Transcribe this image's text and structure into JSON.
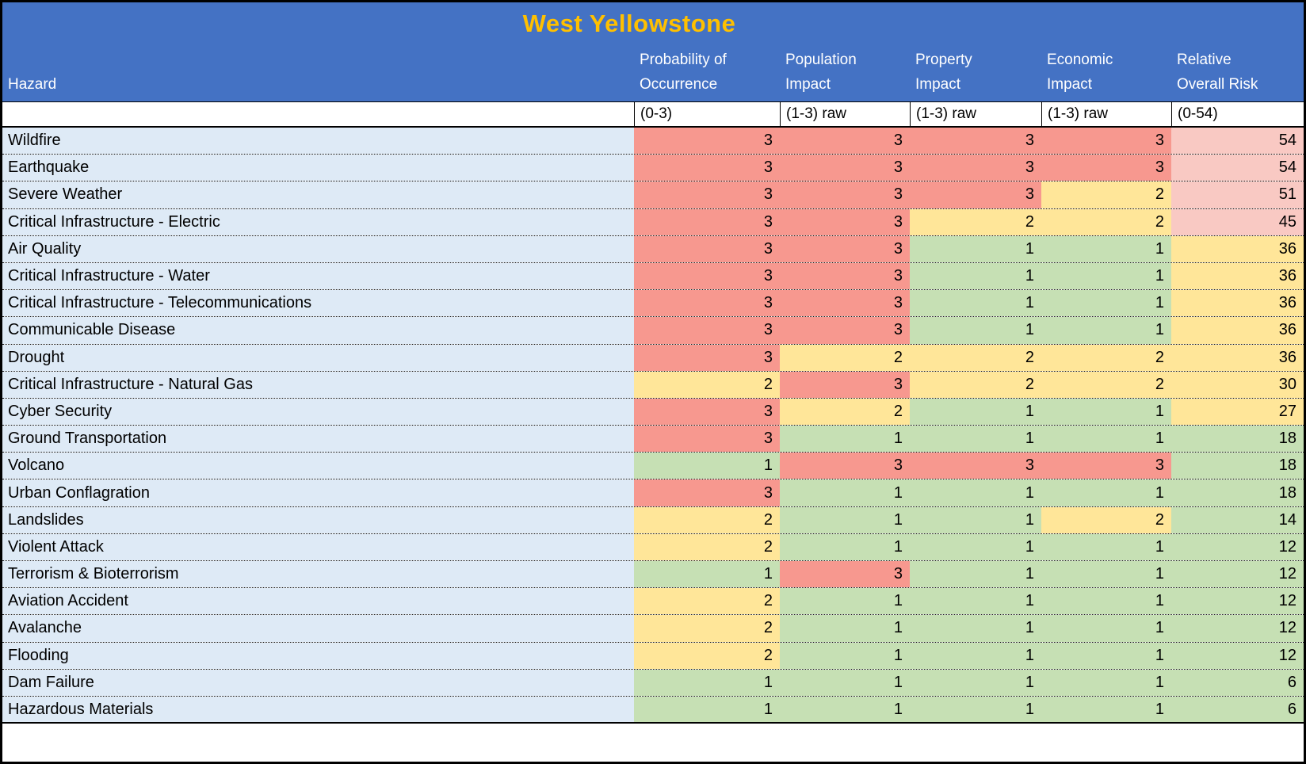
{
  "title": "West Yellowstone",
  "table": {
    "hazard_header": "Hazard",
    "columns": [
      {
        "line1": "Probability of",
        "line2": "Occurrence",
        "range": "(0-3)"
      },
      {
        "line1": "Population",
        "line2": "Impact",
        "range": "(1-3) raw"
      },
      {
        "line1": "Property",
        "line2": "Impact",
        "range": "(1-3) raw"
      },
      {
        "line1": "Economic",
        "line2": "Impact",
        "range": "(1-3) raw"
      },
      {
        "line1": "Relative",
        "line2": "Overall Risk",
        "range": "(0-54)"
      }
    ],
    "value_cell_names": [
      "probability-cell",
      "population-impact-cell",
      "property-impact-cell",
      "economic-impact-cell"
    ],
    "rows": [
      {
        "hazard": "Wildfire",
        "values": [
          3,
          3,
          3,
          3
        ],
        "risk": 54,
        "risk_color": "high"
      },
      {
        "hazard": "Earthquake",
        "values": [
          3,
          3,
          3,
          3
        ],
        "risk": 54,
        "risk_color": "high"
      },
      {
        "hazard": "Severe Weather",
        "values": [
          3,
          3,
          3,
          2
        ],
        "risk": 51,
        "risk_color": "high"
      },
      {
        "hazard": "Critical Infrastructure - Electric",
        "values": [
          3,
          3,
          2,
          2
        ],
        "risk": 45,
        "risk_color": "high"
      },
      {
        "hazard": "Air Quality",
        "values": [
          3,
          3,
          1,
          1
        ],
        "risk": 36,
        "risk_color": "medium"
      },
      {
        "hazard": "Critical Infrastructure - Water",
        "values": [
          3,
          3,
          1,
          1
        ],
        "risk": 36,
        "risk_color": "medium"
      },
      {
        "hazard": "Critical Infrastructure - Telecommunications",
        "values": [
          3,
          3,
          1,
          1
        ],
        "risk": 36,
        "risk_color": "medium"
      },
      {
        "hazard": "Communicable Disease",
        "values": [
          3,
          3,
          1,
          1
        ],
        "risk": 36,
        "risk_color": "medium"
      },
      {
        "hazard": "Drought",
        "values": [
          3,
          2,
          2,
          2
        ],
        "risk": 36,
        "risk_color": "medium"
      },
      {
        "hazard": "Critical Infrastructure - Natural Gas",
        "values": [
          2,
          3,
          2,
          2
        ],
        "risk": 30,
        "risk_color": "medium"
      },
      {
        "hazard": "Cyber Security",
        "values": [
          3,
          2,
          1,
          1
        ],
        "risk": 27,
        "risk_color": "medium"
      },
      {
        "hazard": "Ground Transportation",
        "values": [
          3,
          1,
          1,
          1
        ],
        "risk": 18,
        "risk_color": "low"
      },
      {
        "hazard": "Volcano",
        "values": [
          1,
          3,
          3,
          3
        ],
        "risk": 18,
        "risk_color": "low"
      },
      {
        "hazard": "Urban Conflagration",
        "values": [
          3,
          1,
          1,
          1
        ],
        "risk": 18,
        "risk_color": "low"
      },
      {
        "hazard": "Landslides",
        "values": [
          2,
          1,
          1,
          2
        ],
        "risk": 14,
        "risk_color": "low"
      },
      {
        "hazard": "Violent Attack",
        "values": [
          2,
          1,
          1,
          1
        ],
        "risk": 12,
        "risk_color": "low"
      },
      {
        "hazard": "Terrorism & Bioterrorism",
        "values": [
          1,
          3,
          1,
          1
        ],
        "risk": 12,
        "risk_color": "low"
      },
      {
        "hazard": "Aviation Accident",
        "values": [
          2,
          1,
          1,
          1
        ],
        "risk": 12,
        "risk_color": "low"
      },
      {
        "hazard": "Avalanche",
        "values": [
          2,
          1,
          1,
          1
        ],
        "risk": 12,
        "risk_color": "low"
      },
      {
        "hazard": "Flooding",
        "values": [
          2,
          1,
          1,
          1
        ],
        "risk": 12,
        "risk_color": "low"
      },
      {
        "hazard": "Dam Failure",
        "values": [
          1,
          1,
          1,
          1
        ],
        "risk": 6,
        "risk_color": "low"
      },
      {
        "hazard": "Hazardous Materials",
        "values": [
          1,
          1,
          1,
          1
        ],
        "risk": 6,
        "risk_color": "low"
      }
    ]
  },
  "colors": {
    "header_background": "#4472C4",
    "title_text": "#FFC000",
    "header_text": "#FFFFFF",
    "hazard_column_fill": "#DEEAF6",
    "value_fill": {
      "1": "#C6E0B4",
      "2": "#FFE699",
      "3": "#F7988F"
    },
    "risk_fill": {
      "high": "#F9C9C3",
      "medium": "#FFE699",
      "low": "#C6E0B4"
    }
  }
}
